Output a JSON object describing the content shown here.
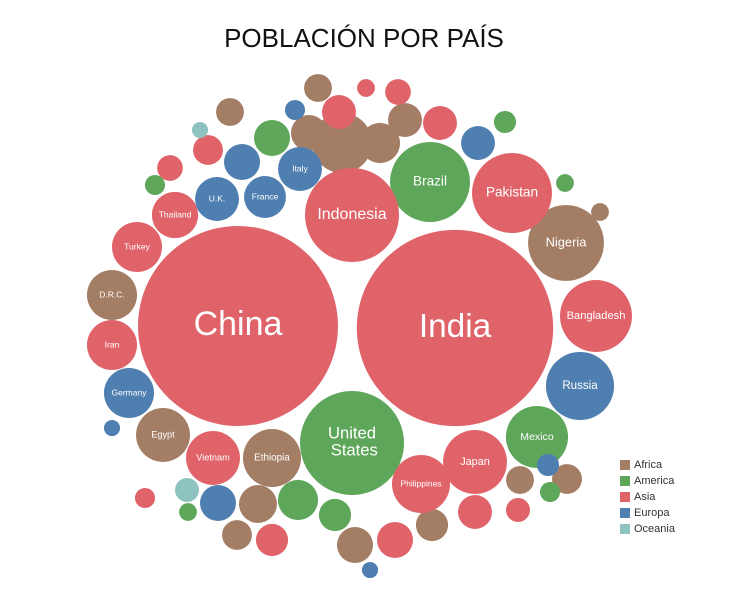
{
  "chart_data": {
    "type": "packed-bubble",
    "title": "POBLACIÓN POR PAÍS",
    "series": [
      {
        "name": "Africa",
        "color": "#a47d65",
        "categories": [
          "Nigeria",
          "Egypt",
          "Ethiopia",
          "D.R.C.",
          null,
          null,
          null,
          null,
          null,
          null,
          null,
          null,
          null,
          null,
          null,
          null,
          null
        ],
        "values": [
          200,
          101,
          117,
          87,
          125,
          56,
          45,
          50,
          31,
          27,
          45,
          31,
          36,
          11,
          40,
          27,
          27
        ]
      },
      {
        "name": "America",
        "color": "#5ea65a",
        "categories": [
          "Brazil",
          "Mexico",
          "United States",
          null,
          null,
          null,
          null,
          null,
          null,
          null,
          null
        ],
        "values": [
          222,
          134,
          376,
          45,
          56,
          36,
          14,
          11,
          17,
          14,
          11
        ]
      },
      {
        "name": "Asia",
        "color": "#e0636a",
        "categories": [
          "China",
          "India",
          "Indonesia",
          "Pakistan",
          "Bangladesh",
          "Japan",
          "Philippines",
          "Vietnam",
          "Turkey",
          "Thailand",
          "Iran",
          null,
          null,
          null,
          null,
          null,
          null,
          null,
          null,
          null,
          null,
          null
        ],
        "values": [
          1390,
          1340,
          307,
          222,
          180,
          142,
          117,
          101,
          87,
          74,
          87,
          40,
          40,
          40,
          20,
          45,
          23,
          31,
          23,
          11,
          36,
          14
        ]
      },
      {
        "name": "Europa",
        "color": "#4f7fb0",
        "categories": [
          "Russia",
          "Germany",
          "U.K.",
          "France",
          "Italy",
          null,
          null,
          null,
          null,
          null,
          null,
          null
        ],
        "values": [
          161,
          87,
          67,
          61,
          67,
          45,
          45,
          40,
          17,
          9,
          9,
          14
        ]
      },
      {
        "name": "Oceania",
        "color": "#8fc3c0",
        "categories": [
          null,
          null
        ],
        "values": [
          20,
          9
        ]
      }
    ]
  }
}
